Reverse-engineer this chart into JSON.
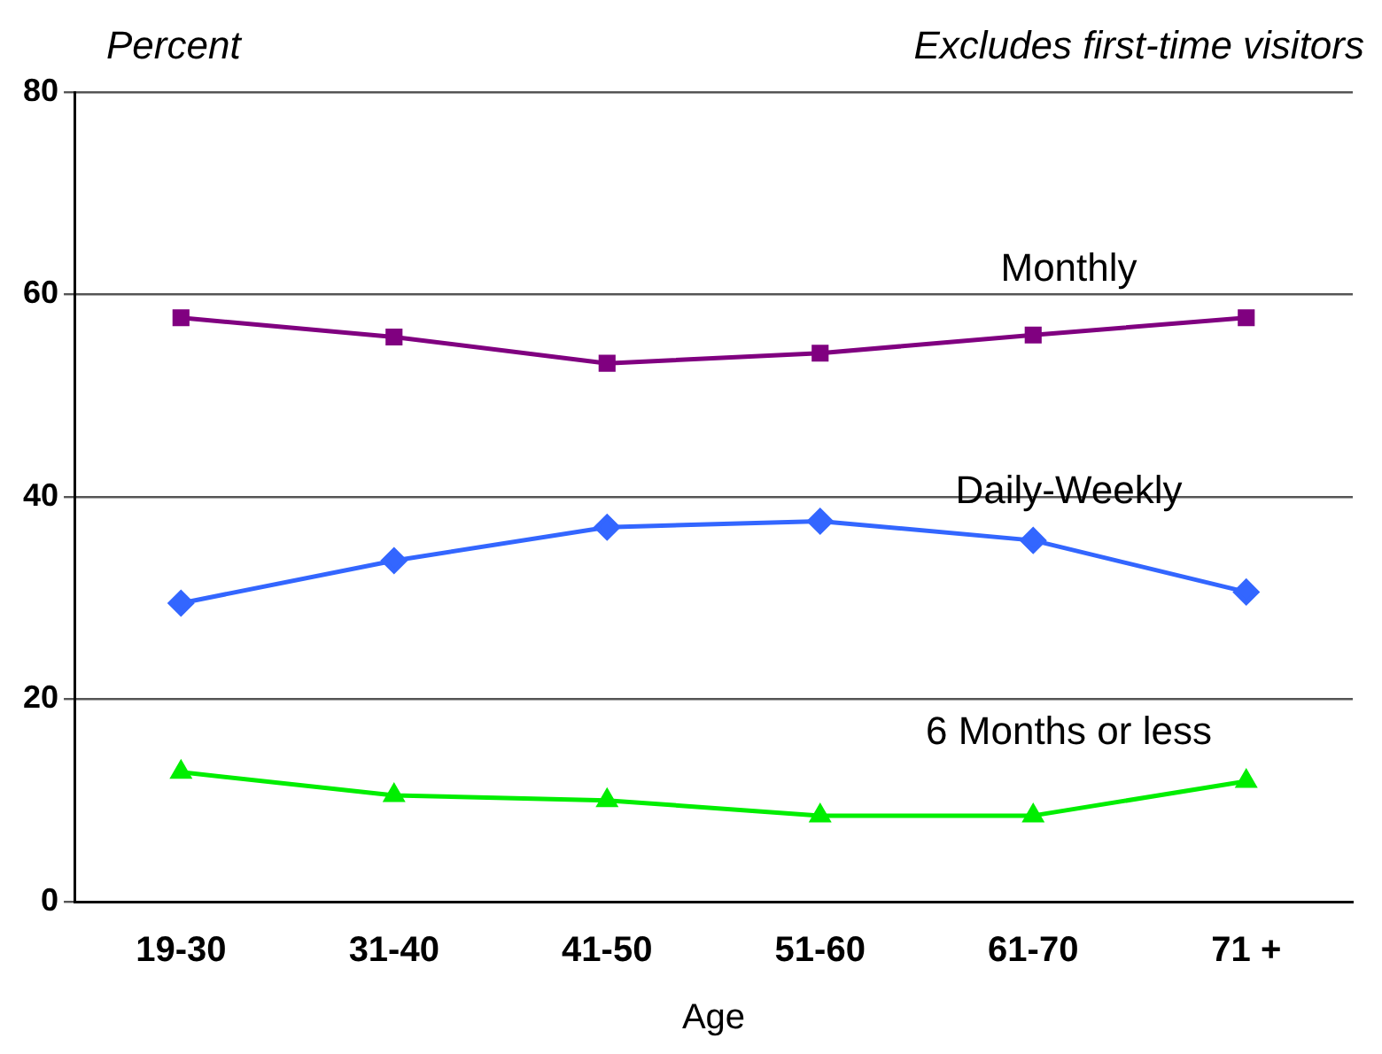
{
  "chart_data": {
    "type": "line",
    "ylabel": "Percent",
    "xlabel": "Age",
    "annotations": [
      "Excludes first-time visitors"
    ],
    "categories": [
      "19-30",
      "31-40",
      "41-50",
      "51-60",
      "61-70",
      "71 +"
    ],
    "series": [
      {
        "name": "Monthly",
        "color": "#800080",
        "marker": "square",
        "values": [
          57.7,
          55.8,
          53.2,
          54.2,
          56.0,
          57.7
        ]
      },
      {
        "name": "Daily-Weekly",
        "color": "#3366ff",
        "marker": "diamond",
        "values": [
          29.5,
          33.7,
          37.0,
          37.6,
          35.7,
          30.6
        ]
      },
      {
        "name": "6 Months or less",
        "color": "#00ee00",
        "marker": "triangle",
        "values": [
          12.8,
          10.5,
          10.0,
          8.5,
          8.5,
          11.9
        ]
      }
    ],
    "ylim": [
      0,
      80
    ],
    "yticks": [
      0,
      20,
      40,
      60,
      80
    ],
    "grid": "y",
    "legend": false
  }
}
